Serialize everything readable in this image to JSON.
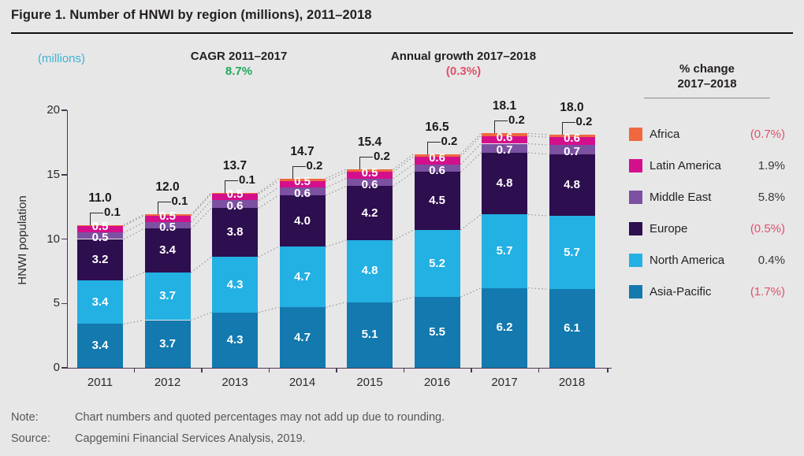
{
  "figure": {
    "title": "Figure 1. Number of HNWI by region (millions), 2011–2018",
    "units_label": "(millions)",
    "cagr": {
      "label": "CAGR 2011–2017",
      "value": "8.7%"
    },
    "annual_growth": {
      "label": "Annual growth 2017–2018",
      "value": "(0.3%)"
    },
    "note_label": "Note:",
    "note_text": "Chart numbers and quoted percentages may not add up due to rounding.",
    "source_label": "Source:",
    "source_text": "Capgemini Financial Services Analysis, 2019."
  },
  "legend": {
    "header_line1": "% change",
    "header_line2": "2017–2018",
    "items": [
      {
        "label": "Africa",
        "change": "(0.7%)",
        "negative": true,
        "color": "#f0683f"
      },
      {
        "label": "Latin America",
        "change": "1.9%",
        "negative": false,
        "color": "#d40f8c"
      },
      {
        "label": "Middle East",
        "change": "5.8%",
        "negative": false,
        "color": "#7c51a1"
      },
      {
        "label": "Europe",
        "change": "(0.5%)",
        "negative": true,
        "color": "#2d0e4e"
      },
      {
        "label": "North America",
        "change": "0.4%",
        "negative": false,
        "color": "#23b0e3"
      },
      {
        "label": "Asia-Pacific",
        "change": "(1.7%)",
        "negative": true,
        "color": "#1379ae"
      }
    ]
  },
  "chart_data": {
    "type": "bar",
    "stacked": true,
    "title": "Number of HNWI by region (millions), 2011–2018",
    "xlabel": "",
    "ylabel": "HNWI population",
    "ylim": [
      0,
      20
    ],
    "yticks": [
      0,
      5,
      10,
      15,
      20
    ],
    "grid": false,
    "legend_position": "right",
    "categories": [
      "2011",
      "2012",
      "2013",
      "2014",
      "2015",
      "2016",
      "2017",
      "2018"
    ],
    "series": [
      {
        "name": "Asia-Pacific",
        "color": "#1379ae",
        "values": [
          3.4,
          3.7,
          4.3,
          4.7,
          5.1,
          5.5,
          6.2,
          6.1
        ]
      },
      {
        "name": "North America",
        "color": "#23b0e3",
        "values": [
          3.4,
          3.7,
          4.3,
          4.7,
          4.8,
          5.2,
          5.7,
          5.7
        ]
      },
      {
        "name": "Europe",
        "color": "#2d0e4e",
        "values": [
          3.2,
          3.4,
          3.8,
          4.0,
          4.2,
          4.5,
          4.8,
          4.8
        ]
      },
      {
        "name": "Middle East",
        "color": "#7c51a1",
        "values": [
          0.5,
          0.5,
          0.6,
          0.6,
          0.6,
          0.6,
          0.7,
          0.7
        ]
      },
      {
        "name": "Latin America",
        "color": "#d40f8c",
        "values": [
          0.5,
          0.5,
          0.5,
          0.5,
          0.5,
          0.6,
          0.6,
          0.6
        ]
      },
      {
        "name": "Africa",
        "color": "#f0683f",
        "values": [
          0.1,
          0.1,
          0.1,
          0.2,
          0.2,
          0.2,
          0.2,
          0.2
        ]
      }
    ],
    "totals": [
      "11.0",
      "12.0",
      "13.7",
      "14.7",
      "15.4",
      "16.5",
      "18.1",
      "18.0"
    ],
    "africa_callouts": [
      "0.1",
      "0.1",
      "0.1",
      "0.2",
      "0.2",
      "0.2",
      "0.2",
      "0.2"
    ]
  },
  "colors": {
    "background": "#e7e7e7",
    "axis": "#4b3752",
    "cagr_green": "#1fa95e",
    "negative_rose": "#e0506b",
    "units_cyan": "#3cb4d6",
    "connector_gray": "#8f8f8f"
  }
}
